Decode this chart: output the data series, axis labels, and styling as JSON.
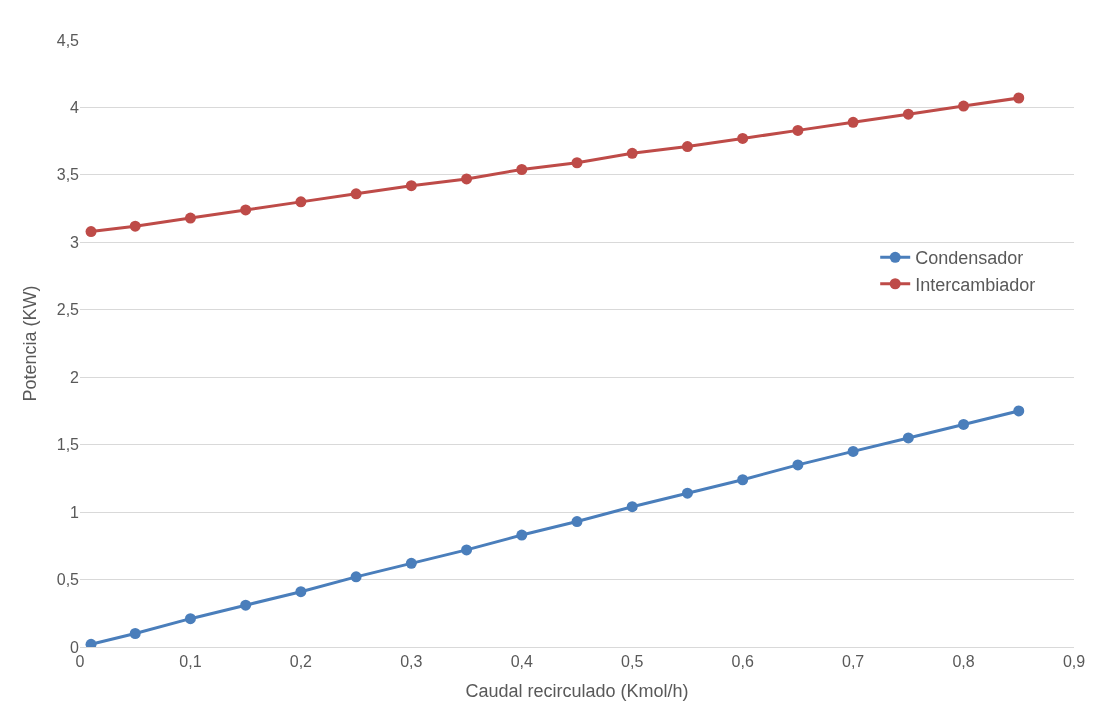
{
  "chart_data": {
    "type": "line",
    "xlabel": "Caudal recirculado (Kmol/h)",
    "ylabel": "Potencia (KW)",
    "x": [
      0.01,
      0.05,
      0.1,
      0.15,
      0.2,
      0.25,
      0.3,
      0.35,
      0.4,
      0.45,
      0.5,
      0.55,
      0.6,
      0.65,
      0.7,
      0.75,
      0.8,
      0.85
    ],
    "series": [
      {
        "name": "Condensador",
        "color": "#4a7ebb",
        "values": [
          0.02,
          0.1,
          0.21,
          0.31,
          0.41,
          0.52,
          0.62,
          0.72,
          0.83,
          0.93,
          1.04,
          1.14,
          1.24,
          1.35,
          1.45,
          1.55,
          1.65,
          1.75
        ]
      },
      {
        "name": "Intercambiador",
        "color": "#be4b48",
        "values": [
          3.08,
          3.12,
          3.18,
          3.24,
          3.3,
          3.36,
          3.42,
          3.47,
          3.54,
          3.59,
          3.66,
          3.71,
          3.77,
          3.83,
          3.89,
          3.95,
          4.01,
          4.07
        ]
      }
    ],
    "xlim": [
      0,
      0.9
    ],
    "xticks": [
      0,
      {
        "value": 0.1,
        "label": "0,1"
      },
      {
        "value": 0.2,
        "label": "0,2"
      },
      {
        "value": 0.3,
        "label": "0,3"
      },
      {
        "value": 0.4,
        "label": "0,4"
      },
      {
        "value": 0.5,
        "label": "0,5"
      },
      {
        "value": 0.6,
        "label": "0,6"
      },
      {
        "value": 0.7,
        "label": "0,7"
      },
      {
        "value": 0.8,
        "label": "0,8"
      },
      {
        "value": 0.9,
        "label": "0,9"
      }
    ],
    "ylim": [
      0,
      4.5
    ],
    "yticks": [
      0,
      {
        "value": 0.5,
        "label": "0,5"
      },
      1,
      {
        "value": 1.5,
        "label": "1,5"
      },
      2,
      {
        "value": 2.5,
        "label": "2,5"
      },
      3,
      {
        "value": 3.5,
        "label": "3,5"
      },
      4,
      {
        "value": 4.5,
        "label": "4,5"
      }
    ],
    "grid": "y",
    "legend": "right",
    "marker": "circle",
    "line_style": "solid"
  }
}
